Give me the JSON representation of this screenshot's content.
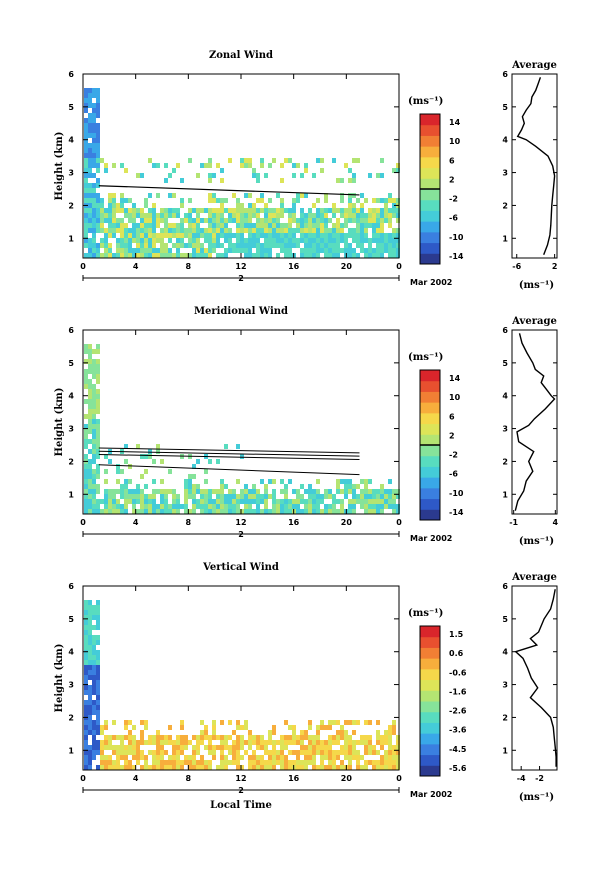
{
  "figure": {
    "colorbar_unit": "(ms⁻¹)",
    "profile_unit": "(ms⁻¹)",
    "x_axis_label": "Local Time",
    "date_label": "Mar 2002",
    "day_label": "2",
    "profile_title": "Average",
    "height_label": "Height (km)"
  },
  "colorscale": [
    "#2b3a8f",
    "#2e59c7",
    "#3a7fe0",
    "#39a8e8",
    "#44ccd8",
    "#58dcbf",
    "#86e39a",
    "#b4e472",
    "#dde458",
    "#f5d84a",
    "#f7ae3c",
    "#f17f34",
    "#e8502f",
    "#d9252b"
  ],
  "chart_data": [
    {
      "type": "heatmap",
      "title": "Zonal Wind",
      "xlabel": "",
      "ylabel": "Height (km)",
      "x_ticks": [
        "0",
        "4",
        "8",
        "12",
        "16",
        "20",
        "0"
      ],
      "y_ticks": [
        "1",
        "2",
        "3",
        "4",
        "5",
        "6"
      ],
      "xlim": [
        0,
        24
      ],
      "ylim": [
        0.4,
        6.0
      ],
      "colorbar": {
        "ticks": [
          "14",
          "10",
          "6",
          "2",
          "-2",
          "-6",
          "-10",
          "-14"
        ],
        "range": [
          -14,
          14
        ],
        "marker": 0
      },
      "profile": {
        "title": "Average",
        "xlabel": "(ms⁻¹)",
        "x_ticks": [
          "-6",
          "2"
        ],
        "xlim": [
          -7,
          2.5
        ],
        "y_ticks": [
          "1",
          "2",
          "3",
          "4",
          "5",
          "6"
        ],
        "heights": [
          0.5,
          0.8,
          1.1,
          1.4,
          1.7,
          2.0,
          2.3,
          2.6,
          2.9,
          3.2,
          3.5,
          3.8,
          4.0,
          4.1,
          4.3,
          4.5,
          4.7,
          4.9,
          5.1,
          5.3,
          5.5,
          5.7,
          5.9
        ],
        "values": [
          -0.3,
          0.5,
          1.0,
          1.2,
          1.3,
          1.4,
          1.6,
          1.8,
          2.0,
          1.6,
          0.6,
          -2.0,
          -4.0,
          -5.8,
          -5.0,
          -4.4,
          -4.8,
          -4.0,
          -3.0,
          -2.8,
          -2.0,
          -1.5,
          -1.0
        ]
      }
    },
    {
      "type": "heatmap",
      "title": "Meridional Wind",
      "xlabel": "",
      "ylabel": "Height (km)",
      "x_ticks": [
        "0",
        "4",
        "8",
        "12",
        "16",
        "20",
        "0"
      ],
      "y_ticks": [
        "1",
        "2",
        "3",
        "4",
        "5",
        "6"
      ],
      "xlim": [
        0,
        24
      ],
      "ylim": [
        0.4,
        6.0
      ],
      "colorbar": {
        "ticks": [
          "14",
          "10",
          "6",
          "2",
          "-2",
          "-6",
          "-10",
          "-14"
        ],
        "range": [
          -14,
          14
        ],
        "marker": 0
      },
      "profile": {
        "title": "Average",
        "xlabel": "(ms⁻¹)",
        "x_ticks": [
          "-1",
          "4"
        ],
        "xlim": [
          -1.2,
          4.2
        ],
        "y_ticks": [
          "1",
          "2",
          "3",
          "4",
          "5",
          "6"
        ],
        "heights": [
          0.5,
          0.8,
          1.1,
          1.4,
          1.7,
          2.0,
          2.3,
          2.6,
          2.9,
          3.1,
          3.3,
          3.6,
          3.9,
          4.0,
          4.2,
          4.4,
          4.6,
          4.8,
          5.0,
          5.3,
          5.6,
          5.9
        ],
        "values": [
          -0.8,
          -0.5,
          0.2,
          0.5,
          1.3,
          0.8,
          1.4,
          -0.4,
          -0.6,
          0.8,
          1.5,
          2.8,
          3.9,
          3.5,
          2.9,
          2.3,
          2.6,
          1.6,
          1.3,
          0.6,
          0.0,
          -0.3
        ]
      }
    },
    {
      "type": "heatmap",
      "title": "Vertical Wind",
      "xlabel": "Local Time",
      "ylabel": "Height (km)",
      "x_ticks": [
        "0",
        "4",
        "8",
        "12",
        "16",
        "20",
        "0"
      ],
      "y_ticks": [
        "1",
        "2",
        "3",
        "4",
        "5",
        "6"
      ],
      "xlim": [
        0,
        24
      ],
      "ylim": [
        0.4,
        6.0
      ],
      "colorbar": {
        "ticks": [
          "1.5",
          "0.6",
          "-0.6",
          "-1.6",
          "-2.6",
          "-3.6",
          "-4.5",
          "-5.6"
        ],
        "range": [
          -5.6,
          1.5
        ],
        "marker": null
      },
      "profile": {
        "title": "Average",
        "xlabel": "(ms⁻¹)",
        "x_ticks": [
          "-4",
          "-2"
        ],
        "xlim": [
          -5.0,
          -0.1
        ],
        "y_ticks": [
          "1",
          "2",
          "3",
          "4",
          "5",
          "6"
        ],
        "heights": [
          0.5,
          0.8,
          1.1,
          1.4,
          1.7,
          2.0,
          2.3,
          2.6,
          2.9,
          3.2,
          3.5,
          3.8,
          4.0,
          4.2,
          4.4,
          4.6,
          4.8,
          5.0,
          5.3,
          5.6,
          5.9
        ],
        "values": [
          -0.2,
          -0.2,
          -0.3,
          -0.4,
          -0.5,
          -0.8,
          -1.8,
          -3.0,
          -2.2,
          -2.9,
          -3.3,
          -3.8,
          -4.6,
          -2.3,
          -3.0,
          -2.1,
          -1.8,
          -1.5,
          -0.8,
          -0.5,
          -0.3
        ]
      }
    }
  ]
}
